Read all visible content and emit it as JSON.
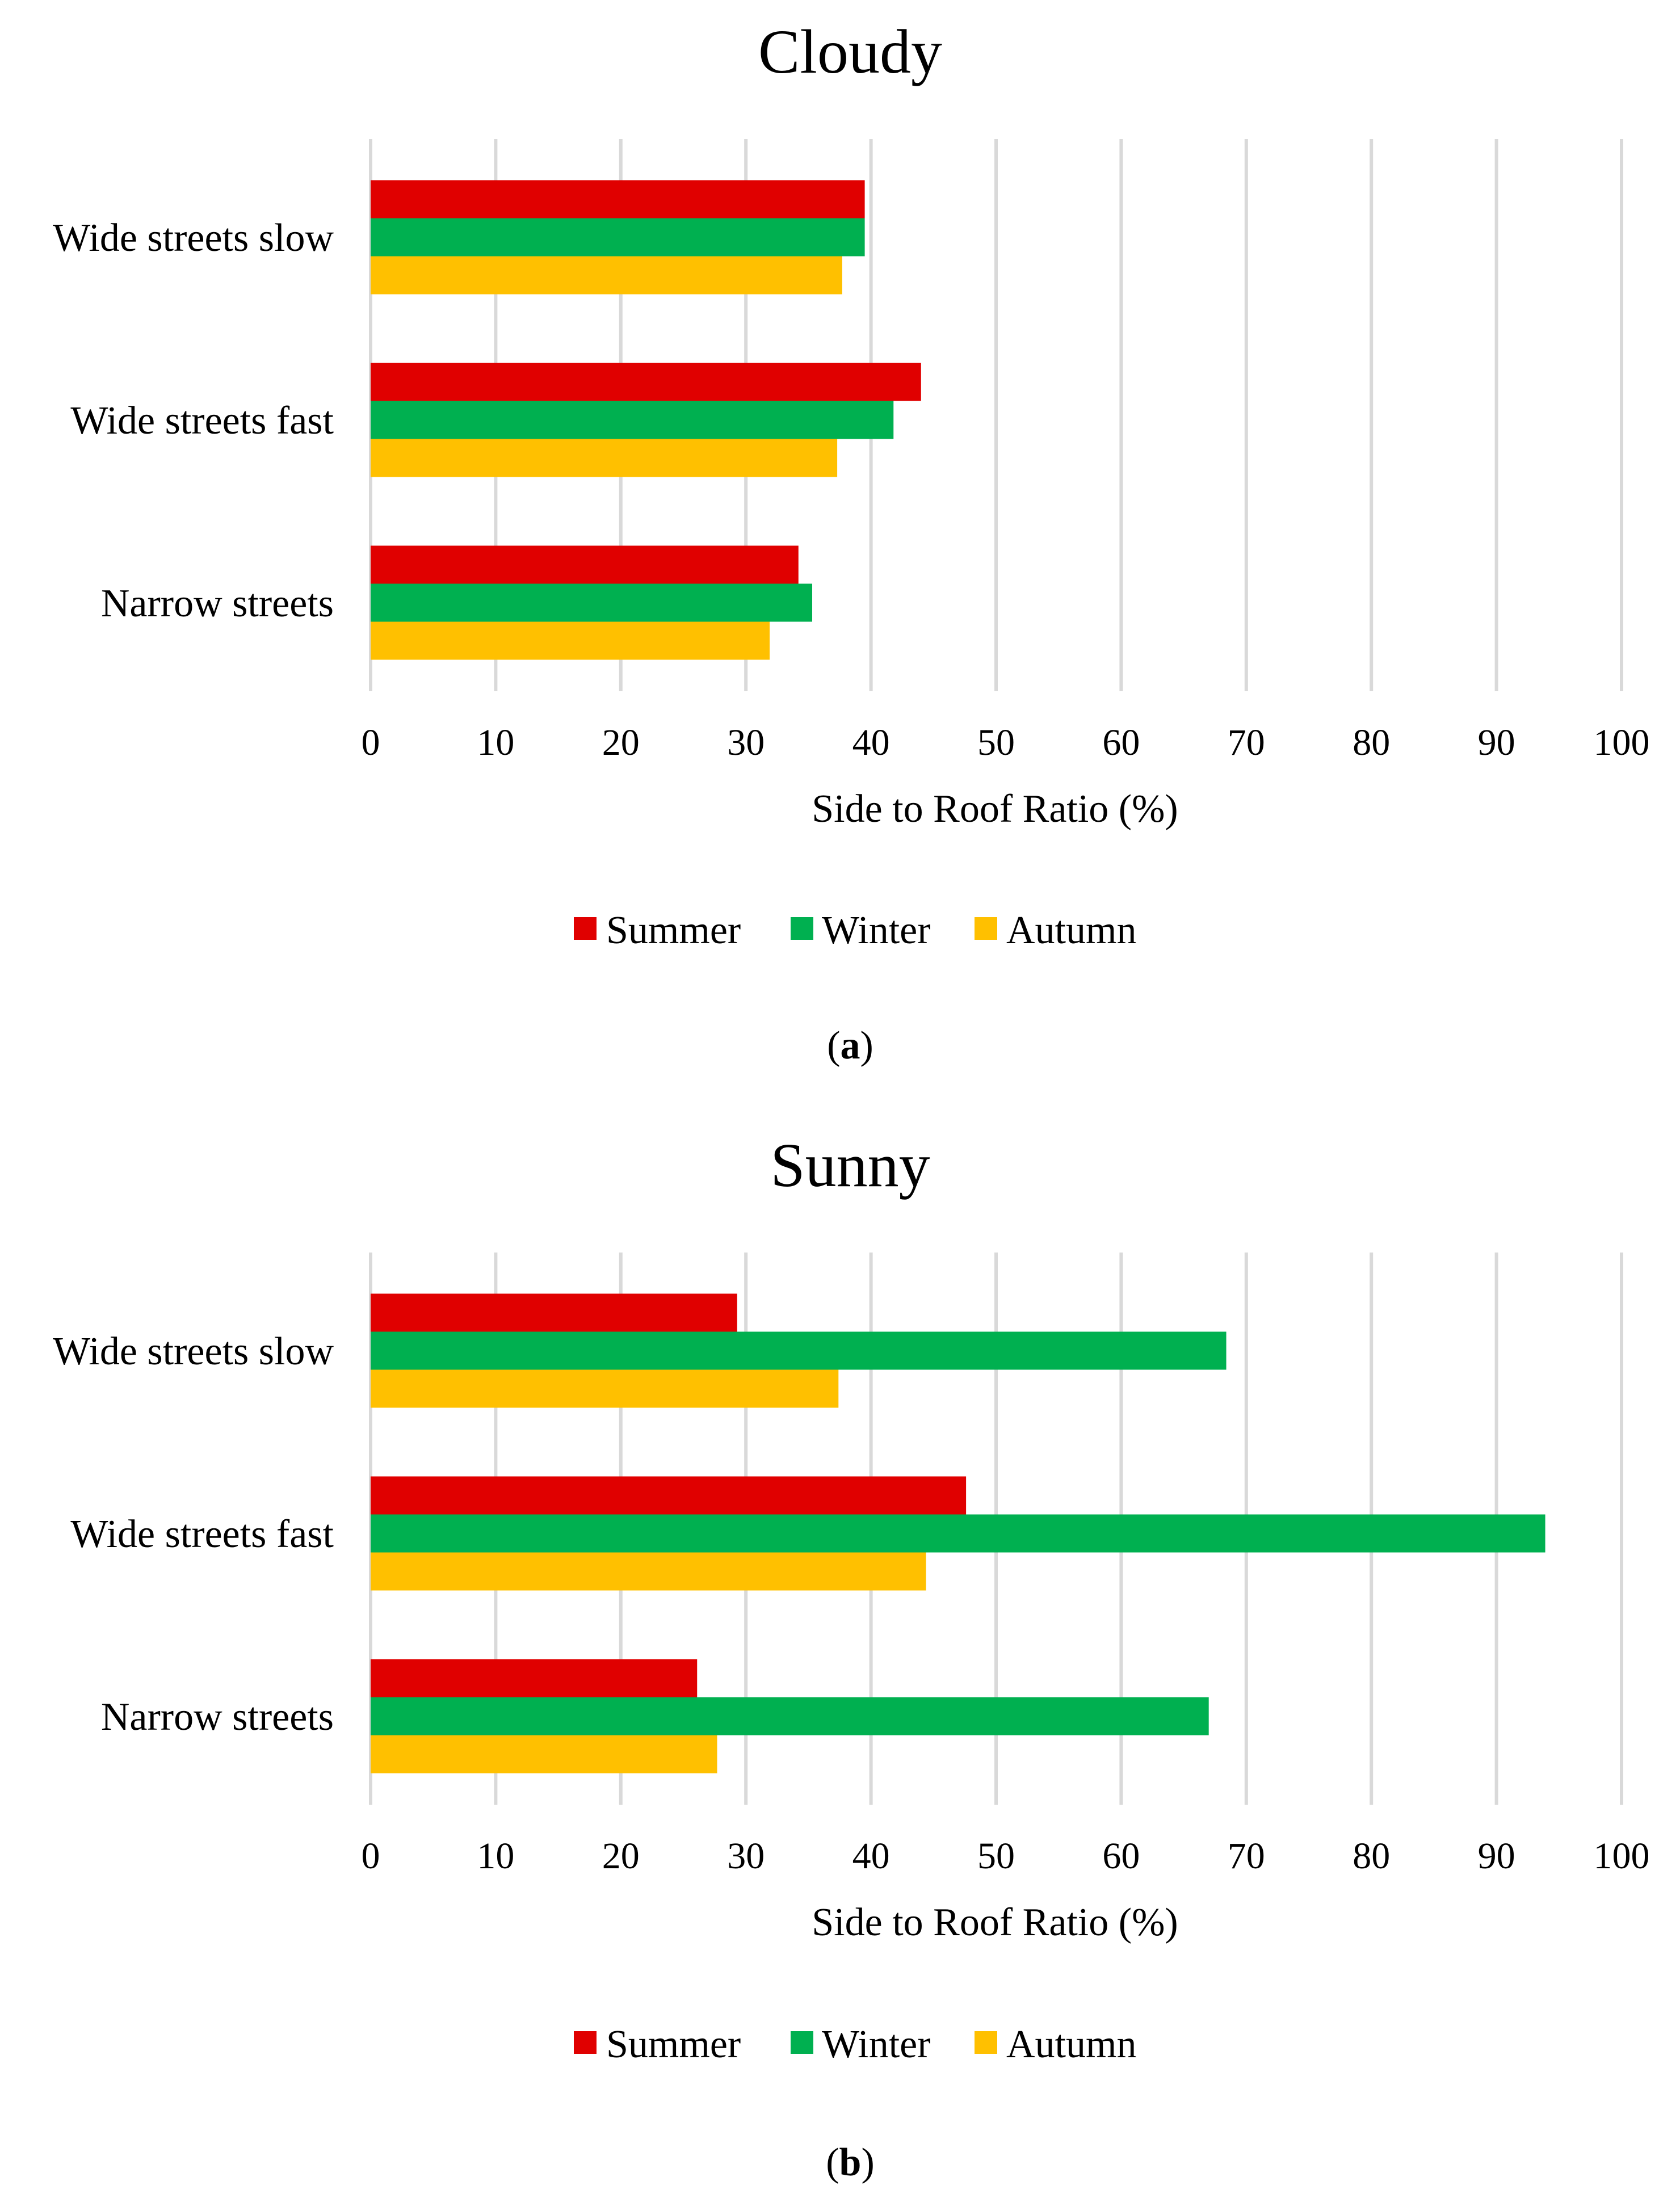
{
  "chart_data": [
    {
      "type": "bar",
      "orientation": "horizontal",
      "title": "Cloudy",
      "panel_label": "a",
      "categories": [
        "Wide streets slow",
        "Wide streets fast",
        "Narrow streets"
      ],
      "series": [
        {
          "name": "Summer",
          "color": "#e00000",
          "values": [
            39.5,
            44.0,
            34.2
          ]
        },
        {
          "name": "Winter",
          "color": "#00b050",
          "values": [
            39.5,
            41.8,
            35.3
          ]
        },
        {
          "name": "Autumn",
          "color": "#ffc000",
          "values": [
            37.7,
            37.3,
            31.9
          ]
        }
      ],
      "xlabel": "Side to Roof Ratio (%)",
      "ylabel": "",
      "xlim": [
        0,
        100
      ],
      "xticks": [
        0,
        10,
        20,
        30,
        40,
        50,
        60,
        70,
        80,
        90,
        100
      ],
      "grid": true,
      "legend": "bottom"
    },
    {
      "type": "bar",
      "orientation": "horizontal",
      "title": "Sunny",
      "panel_label": "b",
      "categories": [
        "Wide streets slow",
        "Wide streets fast",
        "Narrow streets"
      ],
      "series": [
        {
          "name": "Summer",
          "color": "#e00000",
          "values": [
            29.3,
            47.6,
            26.1
          ]
        },
        {
          "name": "Winter",
          "color": "#00b050",
          "values": [
            68.4,
            93.9,
            67.0
          ]
        },
        {
          "name": "Autumn",
          "color": "#ffc000",
          "values": [
            37.4,
            44.4,
            27.7
          ]
        }
      ],
      "xlabel": "Side to Roof Ratio (%)",
      "ylabel": "",
      "xlim": [
        0,
        100
      ],
      "xticks": [
        0,
        10,
        20,
        30,
        40,
        50,
        60,
        70,
        80,
        90,
        100
      ],
      "grid": true,
      "legend": "bottom"
    }
  ]
}
